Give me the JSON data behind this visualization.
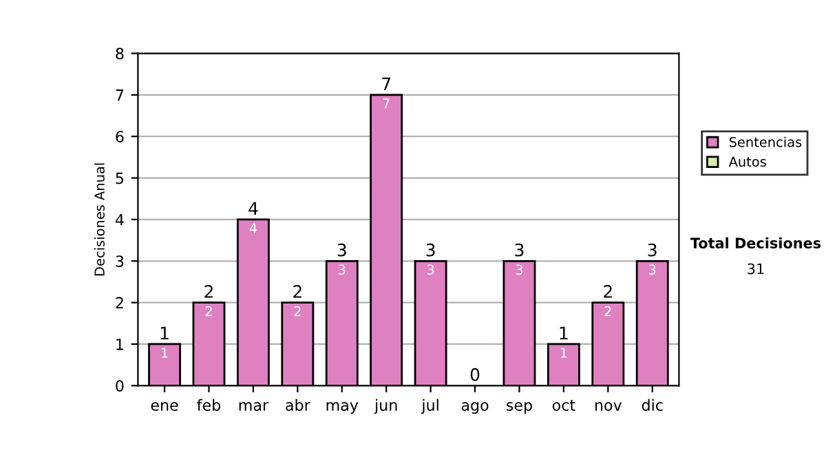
{
  "chart_data": {
    "type": "bar",
    "ylabel": "Decisiones Anual",
    "categories": [
      "ene",
      "feb",
      "mar",
      "abr",
      "may",
      "jun",
      "jul",
      "ago",
      "sep",
      "oct",
      "nov",
      "dic"
    ],
    "stacked": true,
    "series": [
      {
        "name": "Sentencias",
        "color": "#df80c0",
        "values": [
          1,
          2,
          4,
          2,
          3,
          7,
          3,
          0,
          3,
          1,
          2,
          3
        ],
        "value_labels": [
          "1",
          "2",
          "4",
          "2",
          "3",
          "7",
          "3",
          null,
          "3",
          "1",
          "2",
          "3"
        ]
      },
      {
        "name": "Autos",
        "color": "#d8ecae",
        "values": [
          0,
          0,
          0,
          0,
          0,
          0,
          0,
          0,
          0,
          0,
          0,
          0
        ]
      }
    ],
    "totals": [
      "1",
      "2",
      "4",
      "2",
      "3",
      "7",
      "3",
      "0",
      "3",
      "1",
      "2",
      "3"
    ],
    "ylim": [
      0,
      8
    ],
    "yticks": [
      0,
      1,
      2,
      3,
      4,
      5,
      6,
      7,
      8
    ],
    "grid": "y",
    "legend": "right",
    "annotations": [
      "Total Decisiones",
      "31"
    ]
  }
}
